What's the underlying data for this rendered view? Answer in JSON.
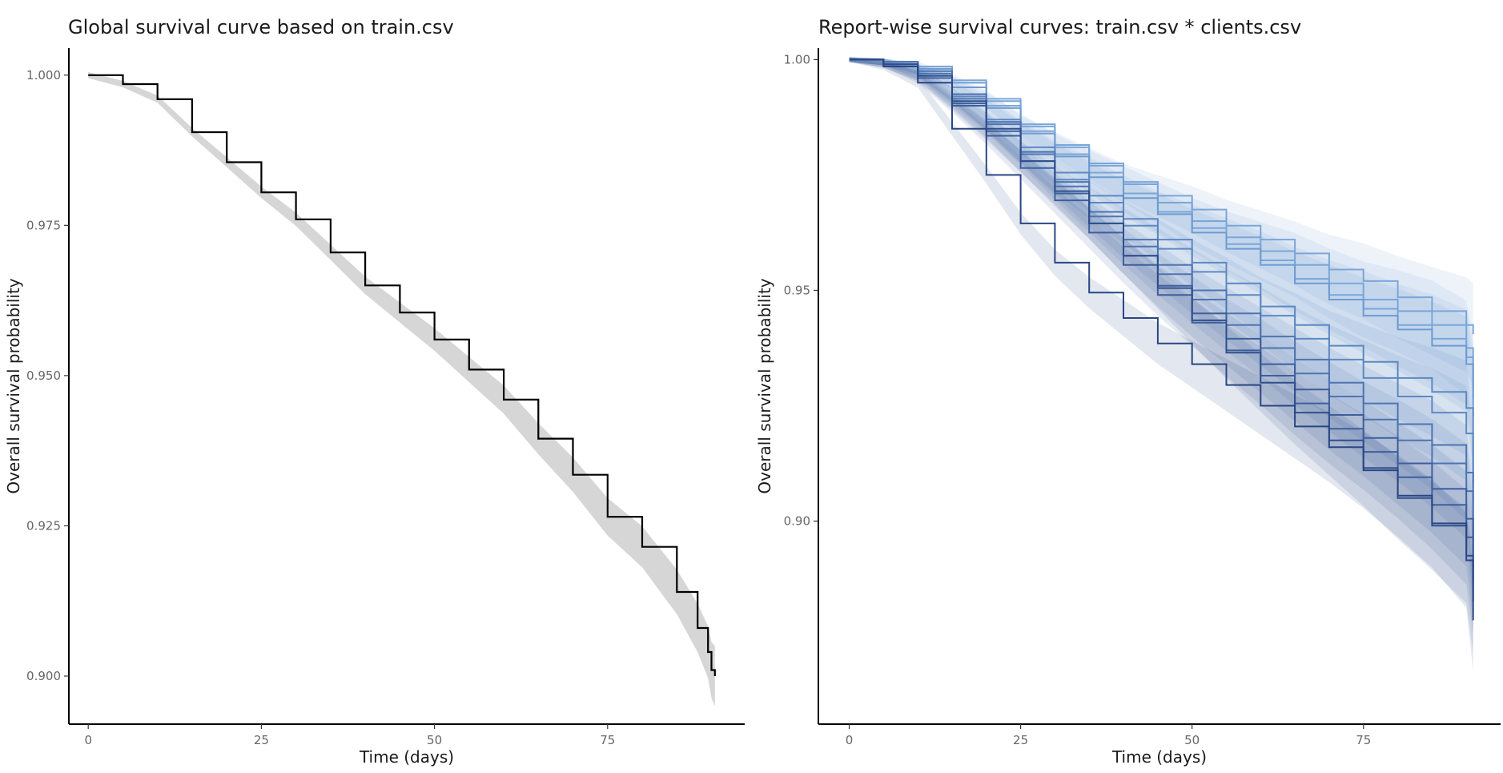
{
  "chart_data": [
    {
      "type": "line",
      "step": true,
      "title": "Global survival curve based on train.csv",
      "xlabel": "Time (days)",
      "ylabel": "Overall survival probability",
      "xlim": [
        -2.8,
        94.8
      ],
      "ylim": [
        0.892,
        1.0045
      ],
      "xticks": [
        0,
        25,
        50,
        75
      ],
      "yticks": [
        0.9,
        0.925,
        0.95,
        0.975,
        1.0
      ],
      "ytick_labels": [
        "0.900",
        "0.925",
        "0.950",
        "0.975",
        "1.000"
      ],
      "grid": false,
      "legend": "none",
      "ci_band": true,
      "series": [
        {
          "color": "#000000",
          "band_color": "#d6d6d6",
          "x": [
            0,
            5,
            10,
            15,
            20,
            25,
            30,
            35,
            40,
            45,
            50,
            55,
            60,
            65,
            70,
            75,
            80,
            85,
            88,
            89.5,
            90,
            90.5
          ],
          "y": [
            1.0,
            0.9985,
            0.996,
            0.9905,
            0.9855,
            0.9805,
            0.976,
            0.9705,
            0.965,
            0.9605,
            0.956,
            0.951,
            0.946,
            0.9395,
            0.9335,
            0.9265,
            0.9215,
            0.914,
            0.908,
            0.904,
            0.901,
            0.9
          ]
        }
      ]
    },
    {
      "type": "line",
      "step": true,
      "title": "Report-wise survival curves: train.csv * clients.csv",
      "xlabel": "Time (days)",
      "ylabel": "Overall survival probability",
      "xlim": [
        -4.5,
        95
      ],
      "ylim": [
        0.856,
        1.0025
      ],
      "xticks": [
        0,
        25,
        50,
        75
      ],
      "yticks": [
        0.9,
        0.95,
        1.0
      ],
      "ytick_labels": [
        "0.90",
        "0.95",
        "1.00"
      ],
      "grid": false,
      "legend": "none",
      "ci_band": true,
      "x": [
        0,
        5,
        10,
        15,
        20,
        25,
        30,
        35,
        40,
        45,
        50,
        55,
        60,
        65,
        70,
        75,
        80,
        85,
        90,
        91
      ],
      "series": [
        {
          "color": "#7aa6d8",
          "y": [
            1.0,
            0.9995,
            0.9985,
            0.9955,
            0.9915,
            0.9855,
            0.9815,
            0.9775,
            0.9735,
            0.9705,
            0.9675,
            0.964,
            0.961,
            0.958,
            0.9545,
            0.952,
            0.9485,
            0.9455,
            0.9425,
            0.9405
          ]
        },
        {
          "color": "#7aa6d8",
          "y": [
            1.0,
            0.9995,
            0.998,
            0.995,
            0.991,
            0.986,
            0.981,
            0.977,
            0.973,
            0.969,
            0.965,
            0.9615,
            0.9585,
            0.9555,
            0.9515,
            0.948,
            0.9455,
            0.9425,
            0.9375,
            0.9285
          ]
        },
        {
          "color": "#7aa6d8",
          "y": [
            1.0,
            0.9995,
            0.998,
            0.995,
            0.99,
            0.9845,
            0.9795,
            0.9755,
            0.971,
            0.967,
            0.9635,
            0.96,
            0.9565,
            0.9525,
            0.949,
            0.946,
            0.9425,
            0.9395,
            0.9355,
            0.9265
          ]
        },
        {
          "color": "#6f9bd0",
          "y": [
            1.0,
            0.9995,
            0.998,
            0.994,
            0.9895,
            0.984,
            0.979,
            0.9745,
            0.97,
            0.9665,
            0.9625,
            0.959,
            0.9555,
            0.9515,
            0.948,
            0.9445,
            0.9415,
            0.938,
            0.934,
            0.9225
          ]
        },
        {
          "color": "#5e88c2",
          "y": [
            1.0,
            0.9995,
            0.9975,
            0.9925,
            0.987,
            0.981,
            0.9755,
            0.9705,
            0.9655,
            0.961,
            0.956,
            0.9515,
            0.9465,
            0.9425,
            0.938,
            0.9345,
            0.931,
            0.928,
            0.9245,
            0.9085
          ]
        },
        {
          "color": "#5e88c2",
          "y": [
            1.0,
            0.9995,
            0.997,
            0.992,
            0.9865,
            0.98,
            0.974,
            0.969,
            0.964,
            0.959,
            0.954,
            0.949,
            0.9445,
            0.9395,
            0.935,
            0.931,
            0.927,
            0.9235,
            0.919,
            0.9045
          ]
        },
        {
          "color": "#4f74b0",
          "y": [
            1.0,
            0.9995,
            0.9975,
            0.9925,
            0.9865,
            0.98,
            0.9735,
            0.967,
            0.961,
            0.9555,
            0.95,
            0.945,
            0.94,
            0.935,
            0.93,
            0.9255,
            0.921,
            0.9165,
            0.9105,
            0.8955
          ]
        },
        {
          "color": "#4f74b0",
          "y": [
            1.0,
            0.9995,
            0.997,
            0.9915,
            0.986,
            0.9795,
            0.9725,
            0.966,
            0.9595,
            0.9535,
            0.948,
            0.9425,
            0.9375,
            0.932,
            0.927,
            0.922,
            0.9175,
            0.9125,
            0.9065,
            0.8925
          ]
        },
        {
          "color": "#3d5f9c",
          "y": [
            1.0,
            0.999,
            0.9965,
            0.9905,
            0.9845,
            0.978,
            0.971,
            0.9645,
            0.9575,
            0.951,
            0.945,
            0.9395,
            0.934,
            0.9285,
            0.923,
            0.918,
            0.9125,
            0.907,
            0.9005,
            0.8895
          ]
        },
        {
          "color": "#3d5f9c",
          "y": [
            1.0,
            0.999,
            0.996,
            0.99,
            0.9835,
            0.9765,
            0.9695,
            0.9625,
            0.9555,
            0.949,
            0.943,
            0.937,
            0.9315,
            0.9255,
            0.92,
            0.915,
            0.9095,
            0.9035,
            0.8965,
            0.8865
          ]
        },
        {
          "color": "#2f4f8c",
          "y": [
            1.0,
            0.999,
            0.9965,
            0.991,
            0.985,
            0.978,
            0.9715,
            0.9645,
            0.9575,
            0.9505,
            0.9435,
            0.9365,
            0.93,
            0.9235,
            0.9175,
            0.9115,
            0.905,
            0.899,
            0.8925,
            0.8825
          ]
        },
        {
          "color": "#2a4684",
          "y": [
            1.0,
            0.9985,
            0.995,
            0.985,
            0.975,
            0.9645,
            0.956,
            0.9495,
            0.944,
            0.9385,
            0.934,
            0.9295,
            0.925,
            0.9205,
            0.916,
            0.911,
            0.9055,
            0.8995,
            0.8915,
            0.8785
          ]
        }
      ]
    }
  ]
}
